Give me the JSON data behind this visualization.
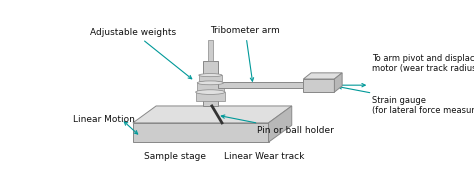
{
  "bg_color": "#ffffff",
  "arrow_color": "#009999",
  "shape_face_dark": "#b8b8b8",
  "shape_face_mid": "#cccccc",
  "shape_face_light": "#e0e0e0",
  "shape_edge": "#888888",
  "text_color": "#111111",
  "pin_color": "#333333",
  "fontsize": 6.5,
  "labels": {
    "adjustable_weights": "Adjustable weights",
    "tribometer_arm": "Tribometer arm",
    "to_arm_pivot": "To arm pivot and displacement\nmotor (wear track radius adjustment)",
    "strain_gauge": "Strain gauge\n(for lateral force measurement)",
    "linear_motion": "Linear Motion",
    "pin_ball_holder": "Pin or ball holder",
    "sample_stage": "Sample stage",
    "linear_wear_track": "Linear Wear track"
  }
}
